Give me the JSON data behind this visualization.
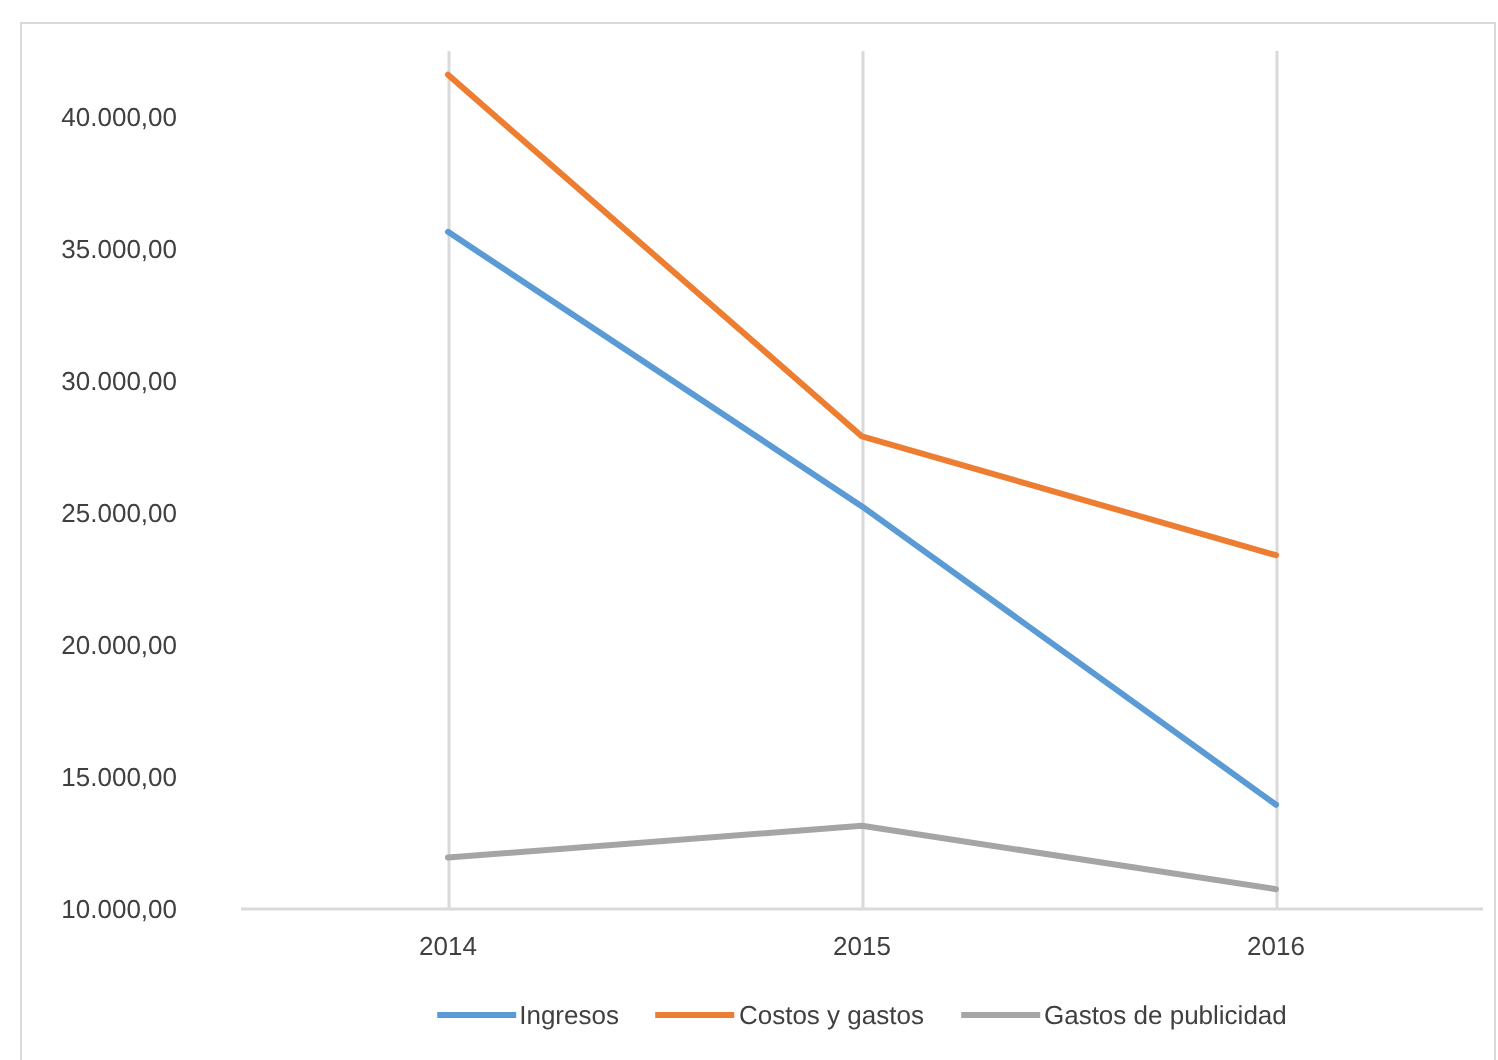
{
  "chart_data": {
    "type": "line",
    "categories": [
      "2014",
      "2015",
      "2016"
    ],
    "series": [
      {
        "name": "Ingresos",
        "color": "#5b9bd5",
        "values": [
          35650,
          25250,
          13950
        ]
      },
      {
        "name": "Costos y gastos",
        "color": "#ed7d31",
        "values": [
          41600,
          27900,
          23400
        ]
      },
      {
        "name": "Gastos de publicidad",
        "color": "#a5a5a5",
        "values": [
          11950,
          13150,
          10750
        ]
      }
    ],
    "ylim": [
      10000,
      42500
    ],
    "yticks": [
      {
        "value": 10000,
        "label": "10.000,00"
      },
      {
        "value": 15000,
        "label": "15.000,00"
      },
      {
        "value": 20000,
        "label": "20.000,00"
      },
      {
        "value": 25000,
        "label": "25.000,00"
      },
      {
        "value": 30000,
        "label": "30.000,00"
      },
      {
        "value": 35000,
        "label": "35.000,00"
      },
      {
        "value": 40000,
        "label": "40.000,00"
      }
    ],
    "grid": "x",
    "legend": "bottom",
    "line_style": "solid"
  }
}
